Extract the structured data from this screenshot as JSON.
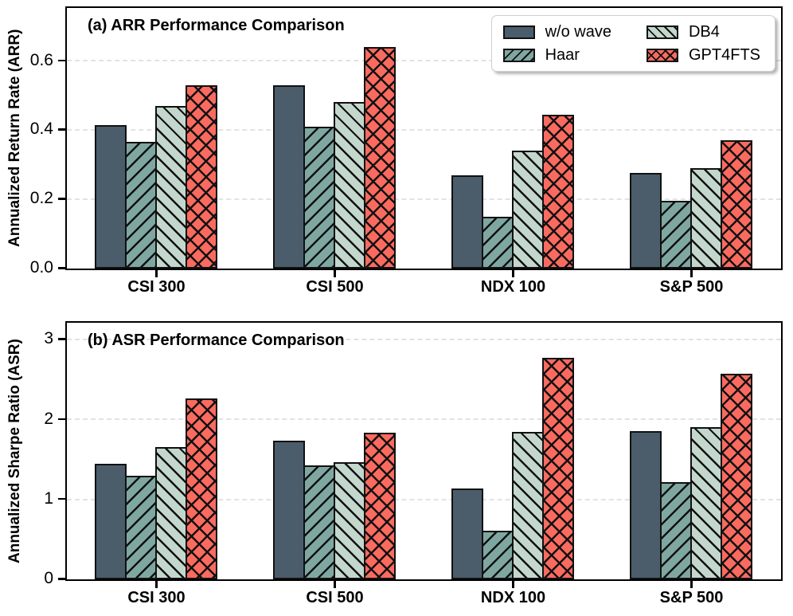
{
  "figure": {
    "background": "#ffffff",
    "edge_color": "#111111"
  },
  "legend": {
    "position": "upper right of panel (a)",
    "items": [
      {
        "label": "w/o wave",
        "color": "#4B5D6B",
        "hatch": "none"
      },
      {
        "label": "Haar",
        "color": "#7FA7A2",
        "hatch": "forward-slash"
      },
      {
        "label": "DB4",
        "color": "#C3D7CD",
        "hatch": "back-slash"
      },
      {
        "label": "GPT4FTS",
        "color": "#FA6A5F",
        "hatch": "cross"
      }
    ]
  },
  "chart_data": [
    {
      "type": "bar",
      "title": "(a) ARR Performance Comparison",
      "ylabel": "Annualized Return Rate (ARR)",
      "xlabel": "",
      "categories": [
        "CSI 300",
        "CSI 500",
        "NDX 100",
        "S&P 500"
      ],
      "yticks": [
        0.0,
        0.2,
        0.4,
        0.6
      ],
      "ytick_labels": [
        "0.0",
        "0.2",
        "0.4",
        "0.6"
      ],
      "ylim": [
        0,
        0.75
      ],
      "grid": "horizontal-dashed",
      "legend_position": "upper-right",
      "series": [
        {
          "name": "w/o wave",
          "values": [
            0.415,
            0.53,
            0.27,
            0.275
          ]
        },
        {
          "name": "Haar",
          "values": [
            0.365,
            0.41,
            0.15,
            0.195
          ]
        },
        {
          "name": "DB4",
          "values": [
            0.47,
            0.48,
            0.34,
            0.29
          ]
        },
        {
          "name": "GPT4FTS",
          "values": [
            0.53,
            0.64,
            0.445,
            0.37
          ]
        }
      ]
    },
    {
      "type": "bar",
      "title": "(b) ASR Performance Comparison",
      "ylabel": "Annualized Sharpe Ratio (ASR)",
      "xlabel": "",
      "categories": [
        "CSI 300",
        "CSI 500",
        "NDX 100",
        "S&P 500"
      ],
      "yticks": [
        0,
        1,
        2,
        3
      ],
      "ytick_labels": [
        "0",
        "1",
        "2",
        "3"
      ],
      "ylim": [
        0,
        3.2
      ],
      "grid": "horizontal-dashed",
      "series": [
        {
          "name": "w/o wave",
          "values": [
            1.45,
            1.73,
            1.14,
            1.85
          ]
        },
        {
          "name": "Haar",
          "values": [
            1.3,
            1.43,
            0.61,
            1.22
          ]
        },
        {
          "name": "DB4",
          "values": [
            1.65,
            1.47,
            1.84,
            1.9
          ]
        },
        {
          "name": "GPT4FTS",
          "values": [
            2.26,
            1.83,
            2.77,
            2.57
          ]
        }
      ]
    }
  ]
}
